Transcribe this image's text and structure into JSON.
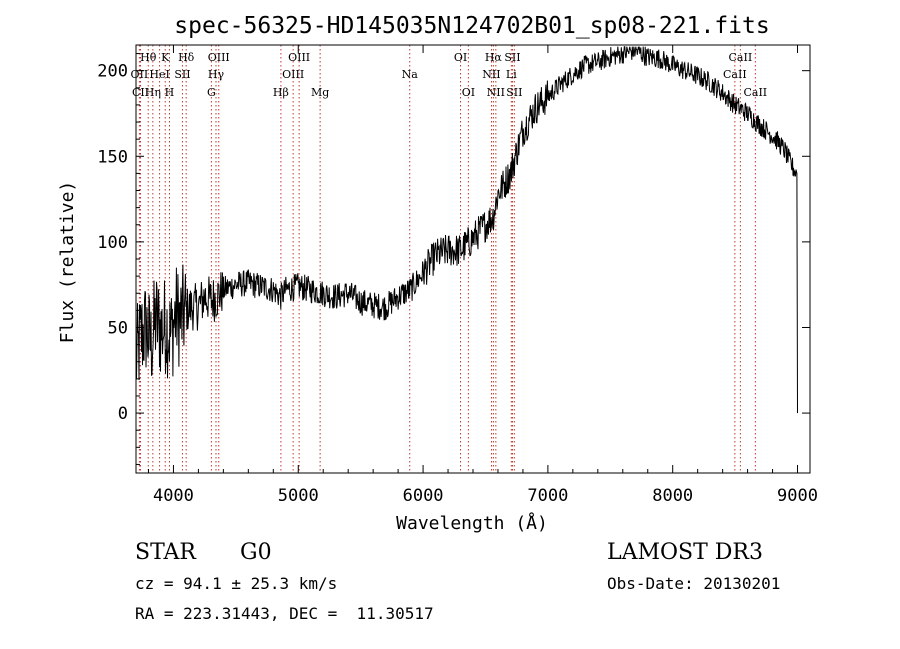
{
  "chart_data": {
    "type": "line",
    "title": "spec-56325-HD145035N124702B01_sp08-221.fits",
    "xlabel": "Wavelength (Å)",
    "ylabel": "Flux (relative)",
    "xlim": [
      3700,
      9100
    ],
    "ylim": [
      -35,
      215
    ],
    "xticks": [
      4000,
      5000,
      6000,
      7000,
      8000,
      9000
    ],
    "yticks": [
      0,
      50,
      100,
      150,
      200
    ],
    "series": [
      {
        "name": "flux",
        "x": [
          3700,
          3740,
          3780,
          3820,
          3860,
          3900,
          3940,
          3980,
          4020,
          4060,
          4100,
          4150,
          4200,
          4250,
          4300,
          4350,
          4400,
          4500,
          4600,
          4700,
          4800,
          4860,
          4900,
          5000,
          5100,
          5200,
          5300,
          5400,
          5500,
          5600,
          5700,
          5800,
          5900,
          6000,
          6100,
          6200,
          6300,
          6400,
          6500,
          6560,
          6600,
          6700,
          6800,
          6900,
          7000,
          7100,
          7200,
          7300,
          7400,
          7500,
          7600,
          7700,
          7800,
          7900,
          8000,
          8100,
          8200,
          8300,
          8400,
          8500,
          8600,
          8700,
          8800,
          8850,
          8900,
          8950,
          8990,
          9000
        ],
        "y": [
          30,
          45,
          50,
          40,
          55,
          48,
          52,
          45,
          58,
          55,
          60,
          62,
          62,
          68,
          66,
          68,
          72,
          75,
          76,
          74,
          72,
          68,
          72,
          74,
          72,
          70,
          68,
          70,
          65,
          63,
          62,
          68,
          72,
          82,
          92,
          95,
          95,
          102,
          110,
          115,
          128,
          140,
          165,
          178,
          185,
          192,
          198,
          203,
          205,
          208,
          210,
          212,
          208,
          207,
          203,
          200,
          197,
          193,
          187,
          180,
          175,
          168,
          162,
          158,
          153,
          145,
          140,
          0
        ]
      }
    ],
    "lines": [
      {
        "label": "Hθ",
        "x": 3798,
        "row": 0
      },
      {
        "label": "OII",
        "x": 3727,
        "row": 1
      },
      {
        "label": "CII",
        "x": 3736,
        "row": 2
      },
      {
        "label": "Hη",
        "x": 3835,
        "row": 2
      },
      {
        "label": "HeI",
        "x": 3889,
        "row": 1
      },
      {
        "label": "K",
        "x": 3934,
        "row": 0
      },
      {
        "label": "H",
        "x": 3968,
        "row": 2
      },
      {
        "label": "SII",
        "x": 4072,
        "row": 1
      },
      {
        "label": "Hδ",
        "x": 4102,
        "row": 0
      },
      {
        "label": "G",
        "x": 4304,
        "row": 2
      },
      {
        "label": "Hγ",
        "x": 4341,
        "row": 1
      },
      {
        "label": "OIII",
        "x": 4363,
        "row": 0
      },
      {
        "label": "Hβ",
        "x": 4861,
        "row": 2
      },
      {
        "label": "OIII",
        "x": 4959,
        "row": 1
      },
      {
        "label": "OIII",
        "x": 5007,
        "row": 0
      },
      {
        "label": "Mg",
        "x": 5175,
        "row": 2
      },
      {
        "label": "Na",
        "x": 5893,
        "row": 1
      },
      {
        "label": "OI",
        "x": 6300,
        "row": 0
      },
      {
        "label": "OI",
        "x": 6363,
        "row": 2
      },
      {
        "label": "NII",
        "x": 6548,
        "row": 1
      },
      {
        "label": "Hα",
        "x": 6563,
        "row": 0
      },
      {
        "label": "NII",
        "x": 6583,
        "row": 2
      },
      {
        "label": "Li",
        "x": 6707,
        "row": 1
      },
      {
        "label": "SII",
        "x": 6716,
        "row": 0
      },
      {
        "label": "SII",
        "x": 6731,
        "row": 2
      },
      {
        "label": "CaII",
        "x": 8498,
        "row": 1
      },
      {
        "label": "CaII",
        "x": 8542,
        "row": 0
      },
      {
        "label": "CaII",
        "x": 8662,
        "row": 2
      }
    ]
  },
  "footer": {
    "object_class": "STAR",
    "subclass": "G0",
    "survey": "LAMOST DR3",
    "redshift_text": "cz = 94.1 ± 25.3 km/s",
    "obs_date": "Obs-Date: 20130201",
    "coords_text": "RA = 223.31443, DEC =  11.30517"
  },
  "colors": {
    "axis": "#000000",
    "spectrum": "#000000",
    "line_marker": "#c0392b"
  }
}
